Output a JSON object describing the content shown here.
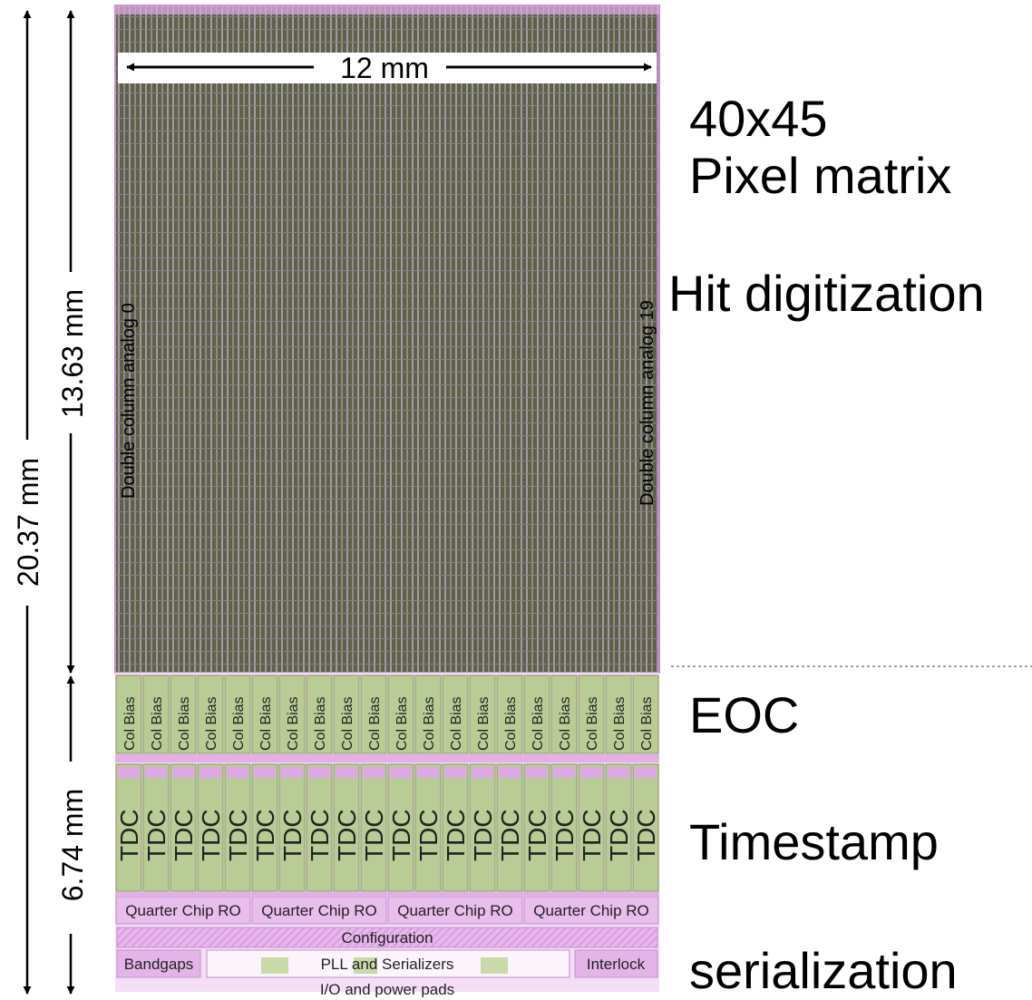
{
  "dimensions": {
    "width_label": "12 mm",
    "total_height_label": "20.37 mm",
    "matrix_height_label": "13.63 mm",
    "periphery_height_label": "6.74 mm"
  },
  "matrix": {
    "first_column_label": "Double column analog 0",
    "last_column_label": "Double column analog 19",
    "double_columns": 20
  },
  "eoc": {
    "col_bias_label": "Col Bias",
    "tdc_label": "TDC",
    "quarter_chip_labels": [
      "Quarter Chip RO",
      "Quarter Chip RO",
      "Quarter Chip RO",
      "Quarter Chip RO"
    ],
    "configuration_label": "Configuration",
    "bandgaps_label": "Bandgaps",
    "pll_label": "PLL and Serializers",
    "interlock_label": "Interlock",
    "pads_label": "I/O and power pads"
  },
  "annotations": {
    "pixel_matrix_line1": "40x45",
    "pixel_matrix_line2": "Pixel matrix",
    "hit_digitization": "Hit digitization",
    "eoc": "EOC",
    "timestamp": "Timestamp",
    "serialization": "serialization"
  },
  "colors": {
    "matrix_dark": "#5c6148",
    "matrix_light": "#a39aa6",
    "eoc_green": "#b9cc95",
    "eoc_pink": "#dca9e3",
    "border_purple": "#c58bd2"
  }
}
